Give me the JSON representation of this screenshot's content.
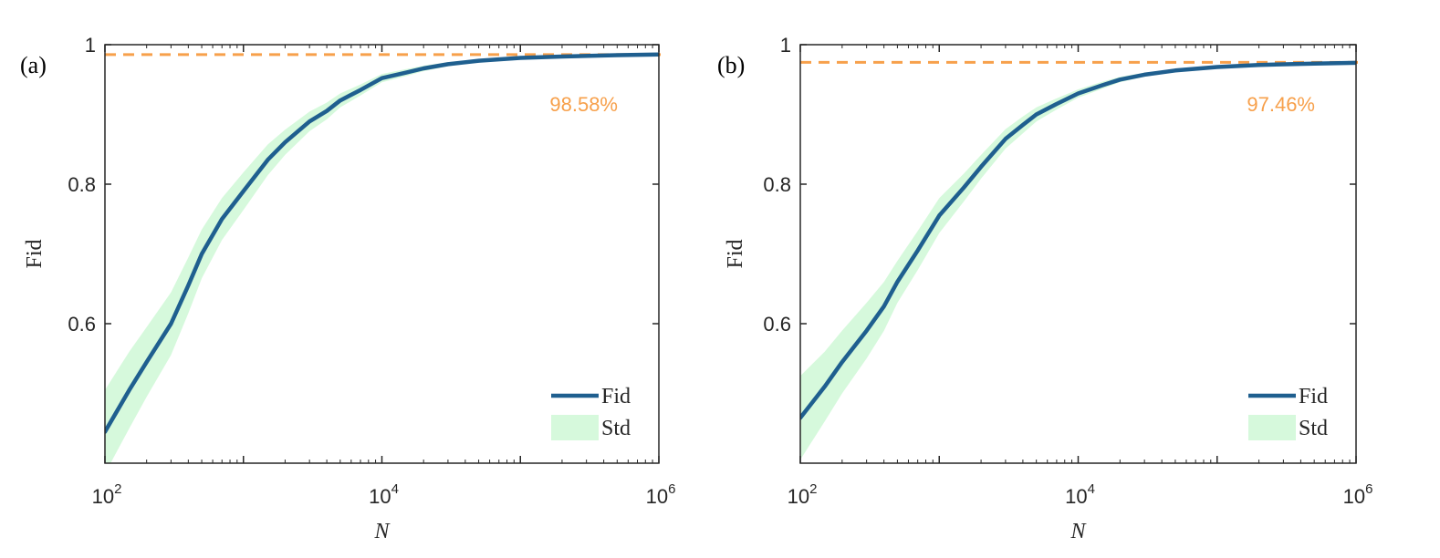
{
  "chart_data": [
    {
      "type": "line",
      "panel_label": "(a)",
      "xscale": "log",
      "xlim": [
        100,
        1000000
      ],
      "ylim": [
        0.4,
        1
      ],
      "xticks": [
        {
          "base": "10",
          "exp": "2",
          "value": 100
        },
        {
          "base": "10",
          "exp": "4",
          "value": 10000
        },
        {
          "base": "10",
          "exp": "6",
          "value": 1000000
        }
      ],
      "yticks": [
        {
          "label": "0.6",
          "value": 0.6
        },
        {
          "label": "0.8",
          "value": 0.8
        },
        {
          "label": "1",
          "value": 1
        }
      ],
      "xlabel": "N",
      "ylabel": "Fid",
      "reference": {
        "value": 0.9858,
        "label": "98.58%",
        "color": "#f7a04b"
      },
      "legend": {
        "placement": "bottom-right",
        "entries": [
          "Fid",
          "Std"
        ]
      },
      "colors": {
        "line": "#1f5f8f",
        "band": "#d6f9dc"
      },
      "series": [
        {
          "name": "Fid",
          "x": [
            100,
            150,
            200,
            300,
            400,
            500,
            700,
            1000,
            1500,
            2000,
            3000,
            4000,
            5000,
            7000,
            10000,
            15000,
            20000,
            30000,
            50000,
            100000,
            200000,
            500000,
            1000000
          ],
          "values": [
            0.445,
            0.505,
            0.545,
            0.6,
            0.655,
            0.7,
            0.75,
            0.79,
            0.835,
            0.86,
            0.89,
            0.905,
            0.92,
            0.935,
            0.952,
            0.96,
            0.966,
            0.972,
            0.977,
            0.981,
            0.983,
            0.985,
            0.986
          ],
          "std": [
            0.06,
            0.055,
            0.05,
            0.045,
            0.04,
            0.035,
            0.03,
            0.027,
            0.022,
            0.018,
            0.014,
            0.012,
            0.01,
            0.008,
            0.006,
            0.005,
            0.004,
            0.003,
            0.002,
            0.002,
            0.001,
            0.001,
            0.001
          ]
        }
      ]
    },
    {
      "type": "line",
      "panel_label": "(b)",
      "xscale": "log",
      "xlim": [
        100,
        1000000
      ],
      "ylim": [
        0.4,
        1
      ],
      "xticks": [
        {
          "base": "10",
          "exp": "2",
          "value": 100
        },
        {
          "base": "10",
          "exp": "4",
          "value": 10000
        },
        {
          "base": "10",
          "exp": "6",
          "value": 1000000
        }
      ],
      "yticks": [
        {
          "label": "0.6",
          "value": 0.6
        },
        {
          "label": "0.8",
          "value": 0.8
        },
        {
          "label": "1",
          "value": 1
        }
      ],
      "xlabel": "N",
      "ylabel": "Fid",
      "reference": {
        "value": 0.9746,
        "label": "97.46%",
        "color": "#f7a04b"
      },
      "legend": {
        "placement": "bottom-right",
        "entries": [
          "Fid",
          "Std"
        ]
      },
      "colors": {
        "line": "#1f5f8f",
        "band": "#d6f9dc"
      },
      "series": [
        {
          "name": "Fid",
          "x": [
            100,
            150,
            200,
            300,
            400,
            500,
            700,
            1000,
            1500,
            2000,
            3000,
            4000,
            5000,
            7000,
            10000,
            15000,
            20000,
            30000,
            50000,
            100000,
            200000,
            500000,
            1000000
          ],
          "values": [
            0.465,
            0.51,
            0.545,
            0.59,
            0.625,
            0.66,
            0.705,
            0.755,
            0.795,
            0.825,
            0.865,
            0.885,
            0.9,
            0.915,
            0.93,
            0.942,
            0.95,
            0.957,
            0.963,
            0.968,
            0.971,
            0.973,
            0.974
          ],
          "std": [
            0.06,
            0.05,
            0.045,
            0.04,
            0.035,
            0.03,
            0.028,
            0.025,
            0.02,
            0.017,
            0.014,
            0.012,
            0.01,
            0.008,
            0.006,
            0.005,
            0.004,
            0.003,
            0.002,
            0.002,
            0.001,
            0.001,
            0.001
          ]
        }
      ]
    }
  ]
}
